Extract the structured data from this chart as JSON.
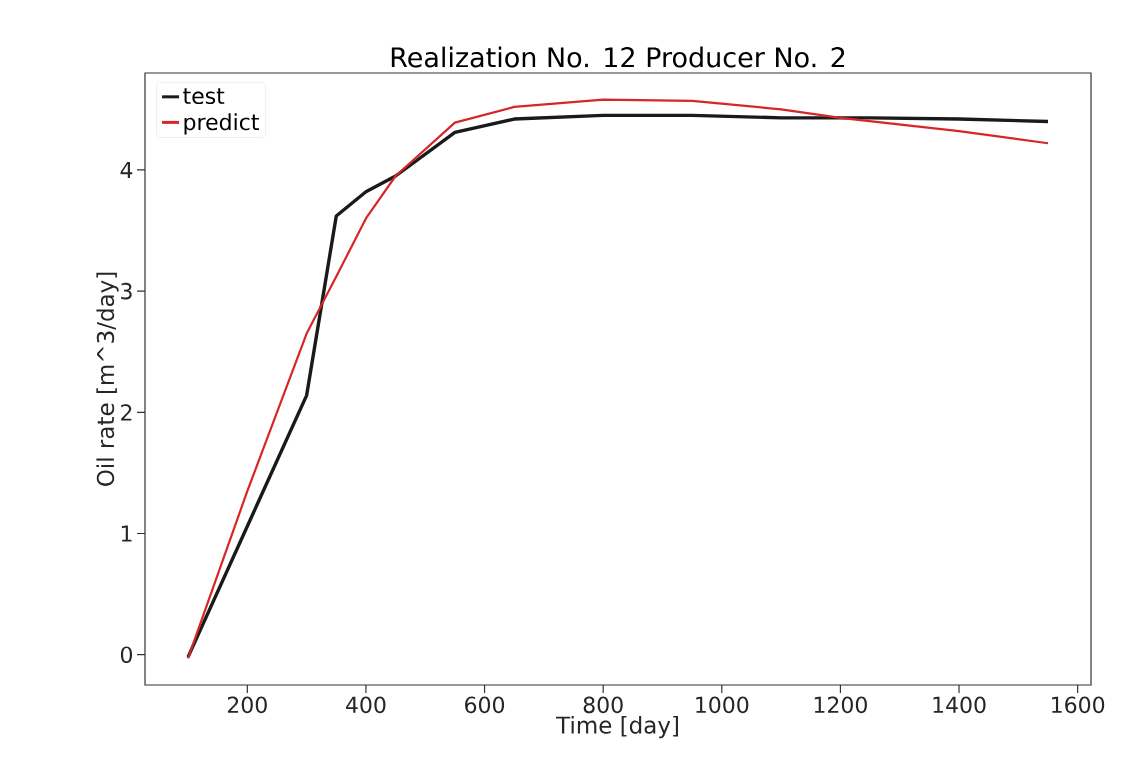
{
  "chart_data": {
    "type": "line",
    "title": "Realization No. 12 Producer No. 2",
    "xlabel": "Time [day]",
    "ylabel": "Oil rate [m^3/day]",
    "xlim": [
      27.5,
      1622.5
    ],
    "ylim": [
      -0.25,
      4.8
    ],
    "xticks": [
      200,
      400,
      600,
      800,
      1000,
      1200,
      1400,
      1600
    ],
    "yticks": [
      0,
      1,
      2,
      3,
      4
    ],
    "grid": false,
    "legend": "top left",
    "series": [
      {
        "name": "test",
        "color": "#1a1a1a",
        "x": [
          100,
          300,
          350,
          400,
          450,
          550,
          650,
          800,
          950,
          1100,
          1250,
          1400,
          1550
        ],
        "values": [
          -0.02,
          2.14,
          3.62,
          3.82,
          3.95,
          4.31,
          4.42,
          4.45,
          4.45,
          4.43,
          4.43,
          4.42,
          4.4
        ]
      },
      {
        "name": "predict",
        "color": "#d62728",
        "x": [
          100,
          200,
          300,
          350,
          400,
          450,
          550,
          650,
          800,
          950,
          1100,
          1200,
          1400,
          1550
        ],
        "values": [
          -0.03,
          1.35,
          2.65,
          3.12,
          3.6,
          3.95,
          4.39,
          4.52,
          4.58,
          4.57,
          4.5,
          4.43,
          4.32,
          4.22
        ]
      }
    ]
  }
}
